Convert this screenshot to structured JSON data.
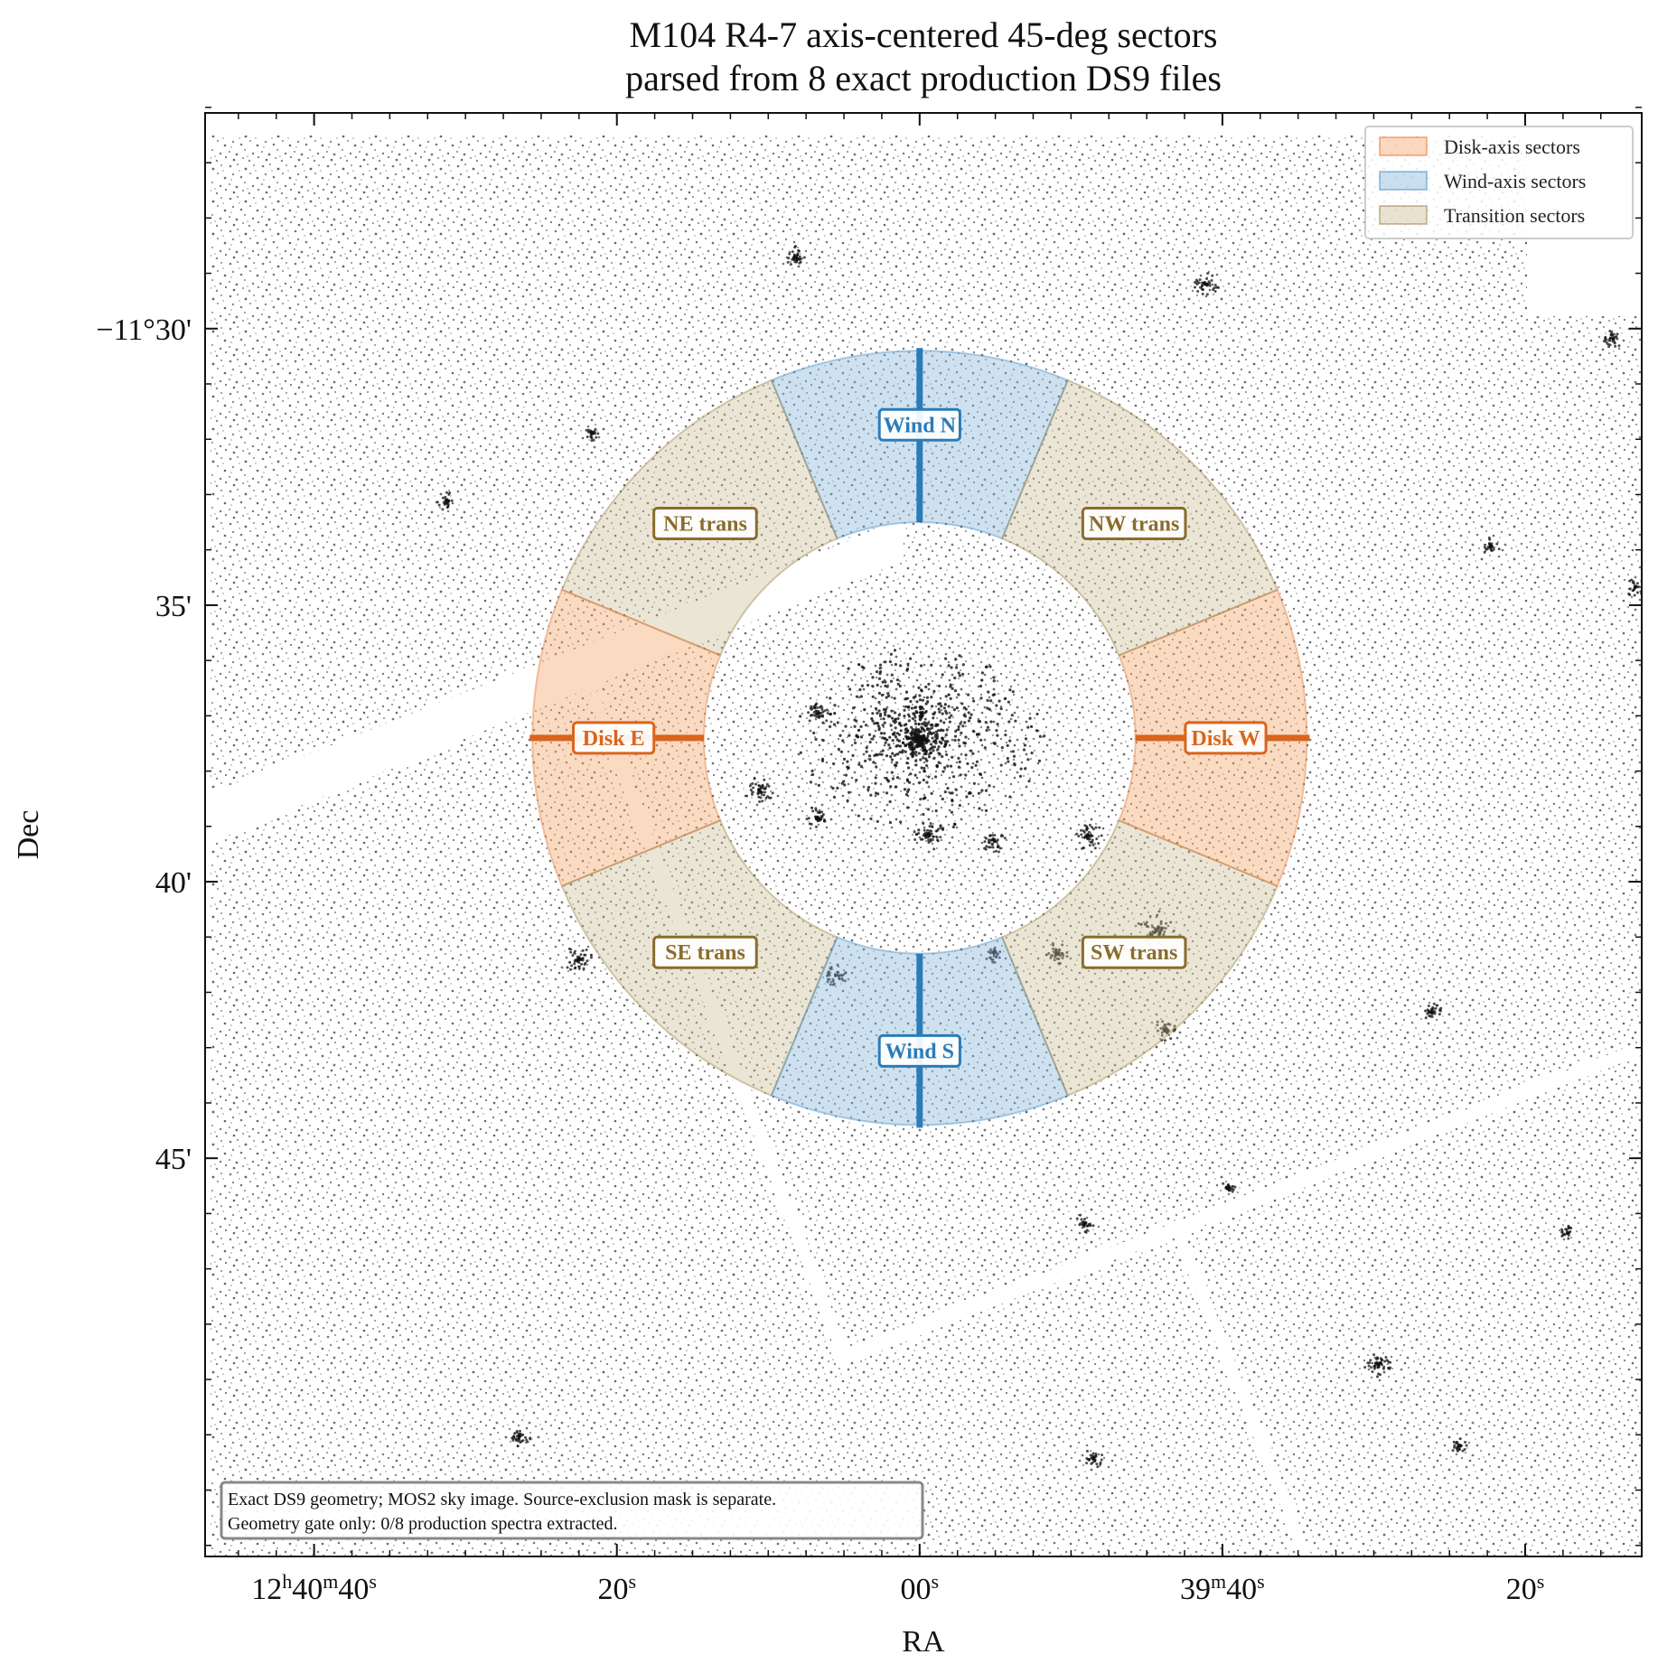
{
  "chart_data": {
    "type": "image-overlay",
    "title_lines": [
      "M104 R4-7 axis-centered 45-deg sectors",
      "parsed from 8 exact production DS9 files"
    ],
    "xlabel": "RA",
    "ylabel": "Dec",
    "ra_ticks": [
      {
        "label": "12h40m40s",
        "ra_sec": 40
      },
      {
        "label": "20s",
        "ra_sec": 20
      },
      {
        "label": "00s",
        "ra_sec": 0
      },
      {
        "label": "39m40s",
        "ra_sec": -20
      },
      {
        "label": "20s",
        "ra_sec": -40
      }
    ],
    "dec_ticks": [
      {
        "label": "−11°30'",
        "dec_arcmin": -690
      },
      {
        "label": "35'",
        "dec_arcmin": -695
      },
      {
        "label": "40'",
        "dec_arcmin": -700
      },
      {
        "label": "45'",
        "dec_arcmin": -705
      }
    ],
    "ra_range_sec": [
      47.2,
      -47.7
    ],
    "dec_range_arcmin": [
      -712.2,
      -686.1
    ],
    "center": {
      "ra_sec": 0,
      "dec_arcmin": -697.4
    },
    "annulus_radius_arcmin": [
      3.9,
      7.0
    ],
    "disk_axis_pa_deg": 90,
    "sector_width_deg": 45,
    "sectors": [
      {
        "label": "Wind N",
        "group": "wind",
        "pa_deg": 0
      },
      {
        "label": "NE trans",
        "group": "transition",
        "pa_deg": 45
      },
      {
        "label": "Disk E",
        "group": "disk",
        "pa_deg": 90
      },
      {
        "label": "SE trans",
        "group": "transition",
        "pa_deg": 135
      },
      {
        "label": "Wind S",
        "group": "wind",
        "pa_deg": 180
      },
      {
        "label": "SW trans",
        "group": "transition",
        "pa_deg": 225
      },
      {
        "label": "Disk W",
        "group": "disk",
        "pa_deg": 270
      },
      {
        "label": "NW trans",
        "group": "transition",
        "pa_deg": 315
      }
    ],
    "legend": {
      "position": "upper right",
      "entries": [
        {
          "label": "Disk-axis sectors",
          "group": "disk"
        },
        {
          "label": "Wind-axis sectors",
          "group": "wind"
        },
        {
          "label": "Transition sectors",
          "group": "transition"
        }
      ]
    },
    "note_lines": [
      "Exact DS9 geometry; MOS2 sky image. Source-exclusion mask is separate.",
      "Geometry gate only: 0/8 production spectra extracted."
    ],
    "colors": {
      "disk_fill": "#f6a86e",
      "disk_edge": "#d9651c",
      "wind_fill": "#8ab7dc",
      "wind_edge": "#2b7cb8",
      "transition_fill": "#cdbf95",
      "transition_edge": "#8a6d2c",
      "background": "#ffffff",
      "counts": "#111111"
    }
  }
}
